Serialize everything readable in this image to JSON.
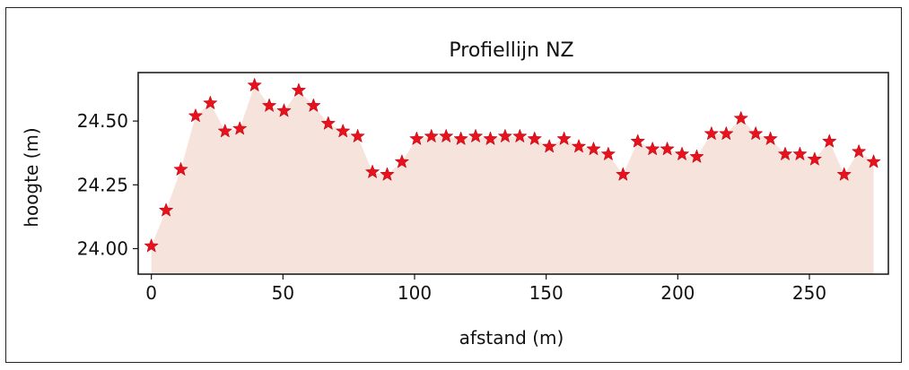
{
  "chart_data": {
    "type": "area",
    "title": "Profiellijn NZ",
    "xlabel": "afstand (m)",
    "ylabel": "hoogte (m)",
    "xlim": [
      -5,
      280
    ],
    "ylim": [
      23.9,
      24.69
    ],
    "xticks": [
      0,
      50,
      100,
      150,
      200,
      250
    ],
    "xtick_labels": [
      "0",
      "50",
      "100",
      "150",
      "200",
      "250"
    ],
    "yticks": [
      24.0,
      24.25,
      24.5
    ],
    "ytick_labels": [
      "24.00",
      "24.25",
      "24.50"
    ],
    "grid": false,
    "fill_color": "#f5e3dc",
    "marker": "star",
    "marker_color": "#e8121c",
    "x": [
      0,
      5.6,
      11.2,
      16.8,
      22.4,
      28.0,
      33.6,
      39.2,
      44.8,
      50.4,
      56.0,
      61.6,
      67.2,
      72.8,
      78.4,
      84.0,
      89.6,
      95.2,
      100.8,
      106.4,
      112.0,
      117.6,
      123.2,
      128.8,
      134.4,
      140.0,
      145.6,
      151.2,
      156.8,
      162.4,
      168.0,
      173.6,
      179.2,
      184.8,
      190.4,
      196.0,
      201.6,
      207.2,
      212.8,
      218.4,
      224.0,
      229.6,
      235.2,
      240.8,
      246.4,
      252.0,
      257.6,
      263.2,
      268.8,
      274.4
    ],
    "values": [
      24.01,
      24.15,
      24.31,
      24.52,
      24.57,
      24.46,
      24.47,
      24.64,
      24.56,
      24.54,
      24.62,
      24.56,
      24.49,
      24.46,
      24.44,
      24.3,
      24.29,
      24.34,
      24.43,
      24.44,
      24.44,
      24.43,
      24.44,
      24.43,
      24.44,
      24.44,
      24.43,
      24.4,
      24.43,
      24.4,
      24.39,
      24.37,
      24.29,
      24.42,
      24.39,
      24.39,
      24.37,
      24.36,
      24.45,
      24.45,
      24.51,
      24.45,
      24.43,
      24.37,
      24.37,
      24.35,
      24.42,
      24.29,
      24.38,
      24.34
    ]
  }
}
